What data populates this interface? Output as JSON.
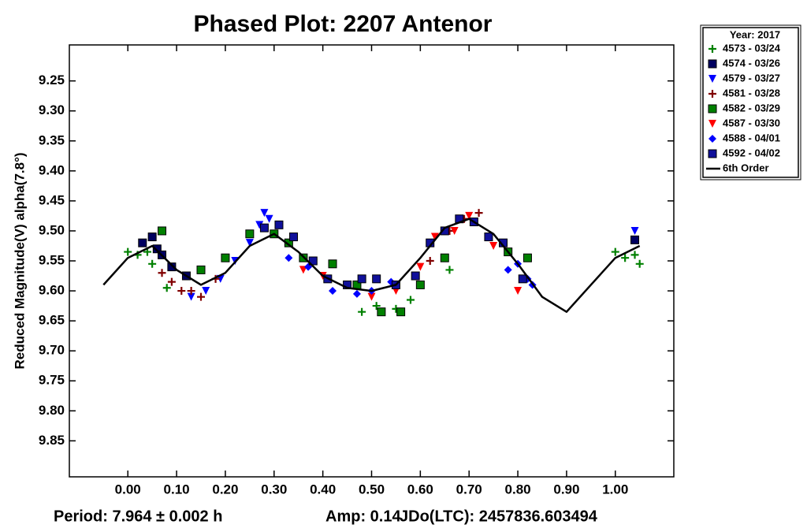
{
  "chart_data": {
    "type": "scatter",
    "title": "Phased Plot: 2207 Antenor",
    "y_label": "Reduced Magnitude(V) alpha(7.8°)",
    "annotations": [
      "Period: 7.964 ± 0.002 h",
      "Amp: 0.14",
      "JDo(LTC): 2457836.603494"
    ],
    "legend_title": "Year: 2017",
    "legend_position": "outside-top-right",
    "y_inverted": true,
    "xlim": [
      -0.12,
      1.12
    ],
    "ylim": [
      9.19,
      9.91
    ],
    "xticks": [
      {
        "value": 0,
        "label": "0.00"
      },
      {
        "value": 0.1,
        "label": "0.10"
      },
      {
        "value": 0.2,
        "label": "0.20"
      },
      {
        "value": 0.3,
        "label": "0.30"
      },
      {
        "value": 0.4,
        "label": "0.40"
      },
      {
        "value": 0.5,
        "label": "0.50"
      },
      {
        "value": 0.6,
        "label": "0.60"
      },
      {
        "value": 0.7,
        "label": "0.70"
      },
      {
        "value": 0.8,
        "label": "0.80"
      },
      {
        "value": 0.9,
        "label": "0.90"
      },
      {
        "value": 1,
        "label": "1.00"
      }
    ],
    "yticks": [
      9.25,
      {
        "value": 9.3,
        "label": "9.30"
      },
      9.35,
      {
        "value": 9.4,
        "label": "9.40"
      },
      9.45,
      {
        "value": 9.5,
        "label": "9.50"
      },
      9.55,
      {
        "value": 9.6,
        "label": "9.60"
      },
      9.65,
      {
        "value": 9.7,
        "label": "9.70"
      },
      9.75,
      {
        "value": 9.8,
        "label": "9.80"
      },
      9.85
    ],
    "series": [
      {
        "name": "4573 - 03/24",
        "color": "#008000",
        "marker": "plus",
        "x": [
          0.0,
          0.02,
          0.04,
          0.05,
          0.08,
          0.48,
          0.51,
          0.55,
          0.58,
          0.66,
          1.0,
          1.02,
          1.04,
          1.05
        ],
        "values": [
          9.535,
          9.54,
          9.535,
          9.555,
          9.595,
          9.635,
          9.625,
          9.63,
          9.615,
          9.565,
          9.535,
          9.545,
          9.54,
          9.555
        ]
      },
      {
        "name": "4574 - 03/26",
        "color": "#000060",
        "marker": "square",
        "x": [
          0.03,
          0.05,
          0.06,
          0.07,
          0.09,
          0.12,
          1.04
        ],
        "values": [
          9.52,
          9.51,
          9.53,
          9.54,
          9.56,
          9.575,
          9.515
        ]
      },
      {
        "name": "4579 - 03/27",
        "color": "#0000ff",
        "marker": "triangle-down",
        "x": [
          0.13,
          0.16,
          0.19,
          0.22,
          0.25,
          0.27,
          0.28,
          0.29,
          1.04
        ],
        "values": [
          9.61,
          9.6,
          9.58,
          9.55,
          9.52,
          9.49,
          9.47,
          9.48,
          9.5
        ]
      },
      {
        "name": "4581 - 03/28",
        "color": "#800000",
        "marker": "plus",
        "x": [
          0.07,
          0.09,
          0.11,
          0.13,
          0.15,
          0.18,
          0.62,
          0.66,
          0.69,
          0.72
        ],
        "values": [
          9.57,
          9.585,
          9.6,
          9.6,
          9.61,
          9.58,
          9.55,
          9.5,
          9.48,
          9.47
        ]
      },
      {
        "name": "4582 - 03/29",
        "color": "#008000",
        "marker": "square",
        "x": [
          0.07,
          0.15,
          0.2,
          0.25,
          0.3,
          0.33,
          0.36,
          0.42,
          0.47,
          0.52,
          0.56,
          0.6,
          0.65,
          0.78,
          0.82
        ],
        "values": [
          9.5,
          9.565,
          9.545,
          9.505,
          9.505,
          9.52,
          9.545,
          9.555,
          9.59,
          9.635,
          9.635,
          9.59,
          9.545,
          9.535,
          9.545
        ]
      },
      {
        "name": "4587 - 03/30",
        "color": "#ff0000",
        "marker": "triangle-down",
        "x": [
          0.36,
          0.4,
          0.45,
          0.5,
          0.55,
          0.6,
          0.63,
          0.67,
          0.7,
          0.75,
          0.8
        ],
        "values": [
          9.565,
          9.575,
          9.59,
          9.61,
          9.6,
          9.56,
          9.51,
          9.5,
          9.475,
          9.525,
          9.6
        ]
      },
      {
        "name": "4588 - 04/01",
        "color": "#0000ff",
        "marker": "diamond",
        "x": [
          0.33,
          0.37,
          0.42,
          0.47,
          0.5,
          0.54,
          0.78,
          0.8,
          0.82,
          0.83
        ],
        "values": [
          9.545,
          9.56,
          9.6,
          9.605,
          9.6,
          9.585,
          9.565,
          9.555,
          9.58,
          9.59
        ]
      },
      {
        "name": "4592 - 04/02",
        "color": "#10109a",
        "marker": "square",
        "x": [
          0.28,
          0.31,
          0.34,
          0.38,
          0.41,
          0.45,
          0.48,
          0.51,
          0.55,
          0.59,
          0.62,
          0.65,
          0.68,
          0.71,
          0.74,
          0.77,
          0.81
        ],
        "values": [
          9.495,
          9.49,
          9.51,
          9.55,
          9.58,
          9.59,
          9.58,
          9.58,
          9.59,
          9.575,
          9.52,
          9.5,
          9.48,
          9.485,
          9.51,
          9.52,
          9.58
        ]
      }
    ],
    "fit": {
      "name": "6th Order",
      "color": "#000000",
      "x": [
        -0.05,
        0.0,
        0.05,
        0.1,
        0.15,
        0.2,
        0.25,
        0.3,
        0.35,
        0.4,
        0.45,
        0.5,
        0.55,
        0.6,
        0.65,
        0.7,
        0.75,
        0.8,
        0.85,
        0.9,
        0.95,
        1.0,
        1.05
      ],
      "values": [
        9.59,
        9.545,
        9.525,
        9.565,
        9.59,
        9.57,
        9.525,
        9.505,
        9.535,
        9.575,
        9.595,
        9.6,
        9.59,
        9.545,
        9.495,
        9.48,
        9.505,
        9.555,
        9.61,
        9.635,
        9.59,
        9.545,
        9.525
      ]
    }
  }
}
